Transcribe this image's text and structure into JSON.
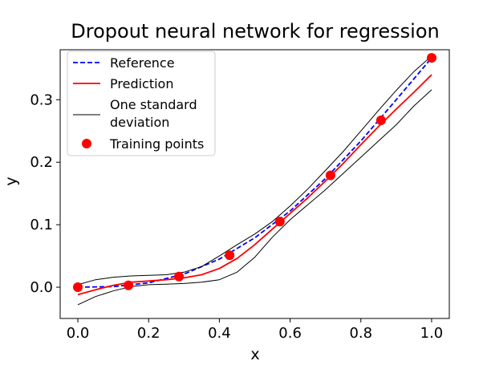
{
  "chart_data": {
    "type": "line",
    "title": "Dropout neural network for regression",
    "xlabel": "x",
    "ylabel": "y",
    "xlim": [
      -0.05,
      1.05
    ],
    "ylim": [
      -0.05,
      0.38
    ],
    "x_ticks": [
      0.0,
      0.2,
      0.4,
      0.6,
      0.8,
      1.0
    ],
    "x_tick_labels": [
      "0.0",
      "0.2",
      "0.4",
      "0.6",
      "0.8",
      "1.0"
    ],
    "y_ticks": [
      0.0,
      0.1,
      0.2,
      0.3
    ],
    "y_tick_labels": [
      "0.0",
      "0.1",
      "0.2",
      "0.3"
    ],
    "grid": false,
    "legend_position": "top-left",
    "legend": [
      "Reference",
      "Prediction",
      "One standard deviation",
      "Training points"
    ],
    "colors": {
      "reference": "#0000ff",
      "prediction": "#ff0000",
      "std": "#000000",
      "points": "#ff0000"
    },
    "series": [
      {
        "name": "Reference",
        "style": "dashed",
        "x": [
          0.0,
          0.1,
          0.2,
          0.3,
          0.4,
          0.5,
          0.6,
          0.7,
          0.8,
          0.9,
          1.0
        ],
        "y": [
          0.0,
          0.001,
          0.007,
          0.021,
          0.045,
          0.079,
          0.122,
          0.174,
          0.234,
          0.3,
          0.367
        ]
      },
      {
        "name": "Prediction",
        "style": "solid",
        "x": [
          0.0,
          0.05,
          0.1,
          0.15,
          0.2,
          0.25,
          0.3,
          0.35,
          0.4,
          0.45,
          0.5,
          0.55,
          0.6,
          0.65,
          0.7,
          0.75,
          0.8,
          0.85,
          0.9,
          0.95,
          1.0
        ],
        "y": [
          -0.012,
          -0.004,
          0.003,
          0.008,
          0.01,
          0.012,
          0.015,
          0.02,
          0.03,
          0.046,
          0.068,
          0.093,
          0.118,
          0.143,
          0.17,
          0.198,
          0.228,
          0.257,
          0.285,
          0.312,
          0.34
        ]
      },
      {
        "name": "One standard deviation (upper)",
        "style": "solid",
        "x": [
          0.0,
          0.05,
          0.1,
          0.15,
          0.2,
          0.25,
          0.3,
          0.35,
          0.4,
          0.45,
          0.5,
          0.55,
          0.6,
          0.65,
          0.7,
          0.75,
          0.8,
          0.85,
          0.9,
          0.95,
          1.0
        ],
        "y": [
          0.004,
          0.012,
          0.016,
          0.018,
          0.019,
          0.02,
          0.024,
          0.033,
          0.05,
          0.068,
          0.085,
          0.105,
          0.13,
          0.157,
          0.187,
          0.217,
          0.25,
          0.283,
          0.315,
          0.345,
          0.37
        ]
      },
      {
        "name": "One standard deviation (lower)",
        "style": "solid",
        "x": [
          0.0,
          0.05,
          0.1,
          0.15,
          0.2,
          0.25,
          0.3,
          0.35,
          0.4,
          0.45,
          0.5,
          0.55,
          0.6,
          0.65,
          0.7,
          0.75,
          0.8,
          0.85,
          0.9,
          0.95,
          1.0
        ],
        "y": [
          -0.028,
          -0.015,
          -0.006,
          0.001,
          0.004,
          0.005,
          0.006,
          0.008,
          0.012,
          0.024,
          0.048,
          0.08,
          0.108,
          0.132,
          0.156,
          0.182,
          0.208,
          0.234,
          0.26,
          0.29,
          0.316
        ]
      }
    ],
    "points": {
      "name": "Training points",
      "x": [
        0.0,
        0.143,
        0.286,
        0.429,
        0.571,
        0.714,
        0.857,
        1.0
      ],
      "y": [
        0.0,
        0.003,
        0.017,
        0.051,
        0.105,
        0.179,
        0.267,
        0.367
      ]
    }
  }
}
